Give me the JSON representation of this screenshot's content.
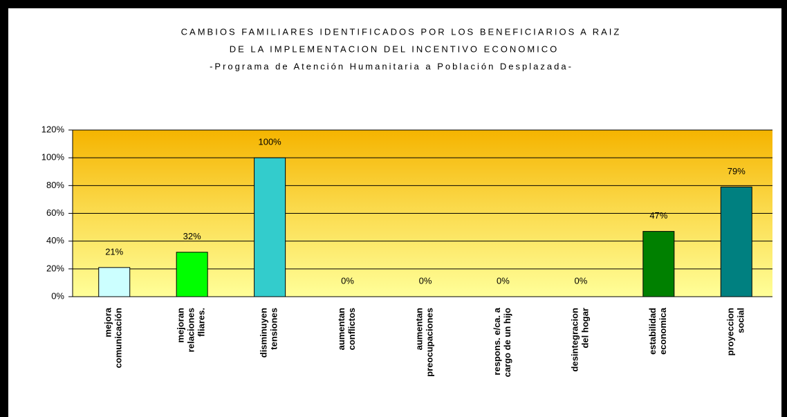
{
  "chart_data": {
    "type": "bar",
    "title": "CAMBIOS FAMILIARES IDENTIFICADOS POR LOS BENEFICIARIOS A RAIZ",
    "subtitle": "DE LA IMPLEMENTACION DEL INCENTIVO ECONOMICO",
    "subtitle2": "-Programa de Atención Humanitaria a Población Desplazada-",
    "categories": [
      "mejora\ncomunicación",
      "mejoran\nrelaciones\nfliares.",
      "disminuyen\ntensiones",
      "aumentan\nconflictos",
      "aumentan\npreocupaciones",
      "respons. e/ca. a\ncargo de un hijo",
      "desintegracion\ndel hogar",
      "estabilidad\neconomica",
      "proyeccion\nsocial"
    ],
    "values": [
      21,
      32,
      100,
      0,
      0,
      0,
      0,
      47,
      79
    ],
    "value_labels": [
      "21%",
      "32%",
      "100%",
      "0%",
      "0%",
      "0%",
      "0%",
      "47%",
      "79%"
    ],
    "colors": [
      "#ccffff",
      "#00ff00",
      "#33cccc",
      "#33cccc",
      "#33cccc",
      "#33cccc",
      "#33cccc",
      "#008000",
      "#008080"
    ],
    "ylim": [
      0,
      120
    ],
    "yticks": [
      {
        "value": 0,
        "label": "0%"
      },
      {
        "value": 20,
        "label": "20%"
      },
      {
        "value": 40,
        "label": "40%"
      },
      {
        "value": 60,
        "label": "60%"
      },
      {
        "value": 80,
        "label": "80%"
      },
      {
        "value": 100,
        "label": "100%"
      },
      {
        "value": 120,
        "label": "120%"
      }
    ],
    "grid": true
  }
}
